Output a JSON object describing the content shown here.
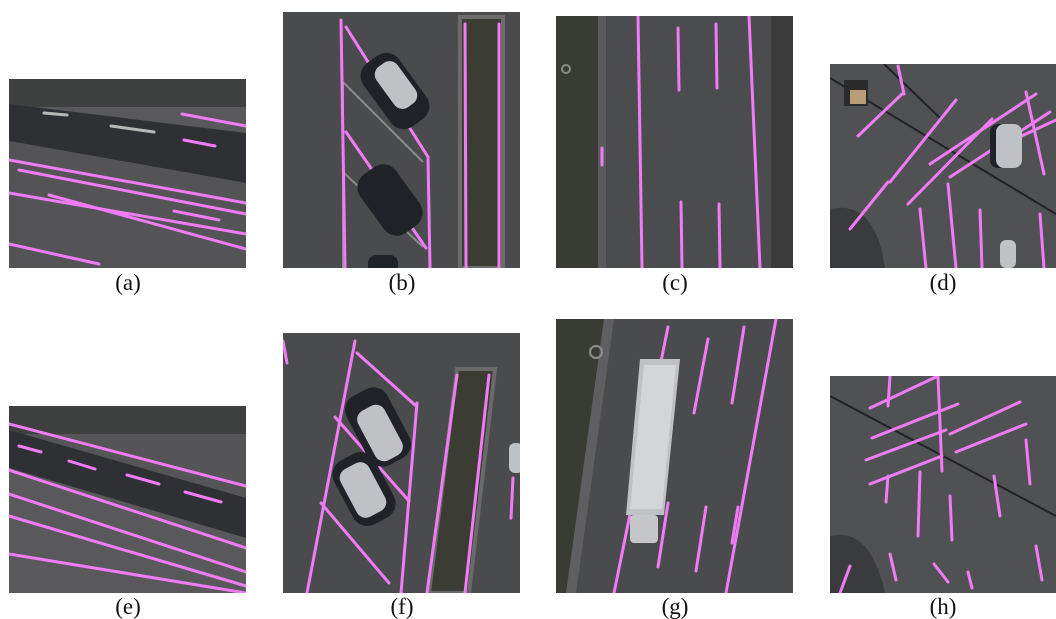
{
  "captions": {
    "a": "(a)",
    "b": "(b)",
    "c": "(c)",
    "d": "(d)",
    "e": "(e)",
    "f": "(f)",
    "g": "(g)",
    "h": "(h)"
  },
  "colors": {
    "marking": "#f07cf5",
    "asphalt": "#4f4f51",
    "road_dark": "#333438",
    "grass": "#3b3d34",
    "car_dark": "#1f2327",
    "car_white": "#bfc2c4"
  }
}
